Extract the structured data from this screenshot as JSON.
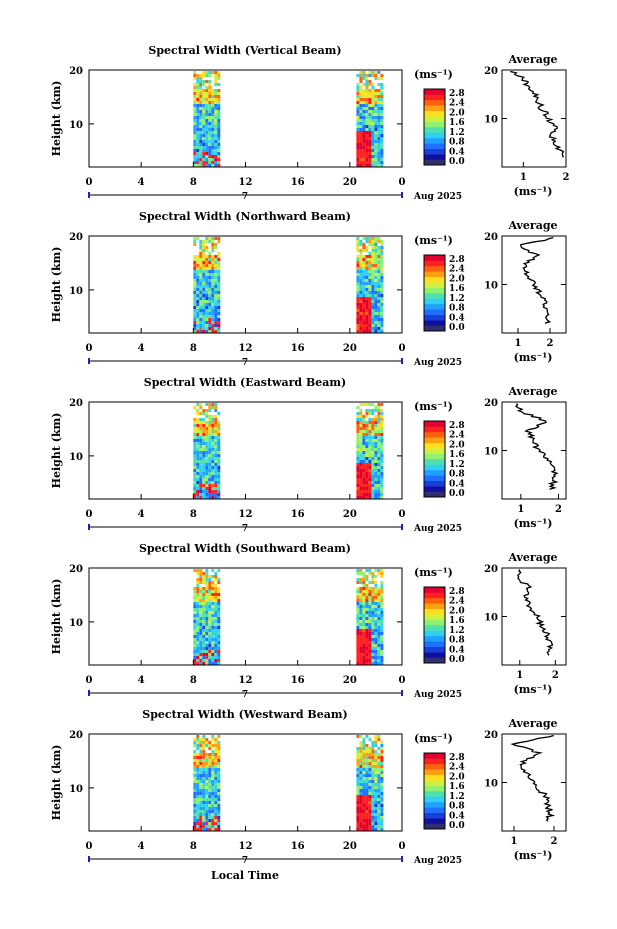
{
  "figure": {
    "xlabel": "Local Time",
    "date_label": "Aug 2025",
    "day_label": "7",
    "colorbar_unit": "(ms⁻¹)",
    "avg_title": "Average",
    "avg_xlabel": "(ms⁻¹)",
    "ylabel": "Height (km)",
    "colorbar_ticks": [
      "0.0",
      "0.4",
      "0.8",
      "1.2",
      "1.6",
      "2.0",
      "2.4",
      "2.8"
    ],
    "colorbar_colors": [
      "#303070",
      "#1010a0",
      "#1840d8",
      "#2070ff",
      "#20a0ff",
      "#30d0f0",
      "#50e0b0",
      "#90f070",
      "#d0f040",
      "#ffe020",
      "#ffa010",
      "#ff6010",
      "#ff2020",
      "#e00030"
    ],
    "time_ticks": [
      "0",
      "4",
      "8",
      "12",
      "16",
      "20",
      "0"
    ],
    "height_ticks": [
      "10",
      "20"
    ]
  },
  "chart_data": [
    {
      "type": "heatmap",
      "title": "Spectral Width (Vertical Beam)",
      "xlabel": "Local Time",
      "ylabel": "Height (km)",
      "xlim": [
        0,
        24
      ],
      "ylim": [
        2,
        20
      ],
      "data_blocks_local_time": [
        [
          8,
          10
        ],
        [
          20.5,
          22.5
        ]
      ],
      "avg_profile": {
        "title": "Average",
        "xlabel": "(ms⁻¹)",
        "xticks": [
          "1",
          "2"
        ],
        "xlim": [
          0.5,
          2.0
        ],
        "height": [
          2,
          4,
          6,
          8,
          10,
          12,
          14,
          16,
          18,
          20
        ],
        "values": [
          1.9,
          1.85,
          1.7,
          1.75,
          1.6,
          1.45,
          1.3,
          1.2,
          1.0,
          0.7
        ]
      }
    },
    {
      "type": "heatmap",
      "title": "Spectral Width (Northward Beam)",
      "xlabel": "Local Time",
      "ylabel": "Height (km)",
      "xlim": [
        0,
        24
      ],
      "ylim": [
        2,
        20
      ],
      "data_blocks_local_time": [
        [
          8,
          10
        ],
        [
          20.5,
          22.5
        ]
      ],
      "avg_profile": {
        "title": "Average",
        "xlabel": "(ms⁻¹)",
        "xticks": [
          "1",
          "2"
        ],
        "xlim": [
          0.5,
          2.5
        ],
        "height": [
          2,
          4,
          6,
          8,
          10,
          12,
          14,
          16,
          18,
          20
        ],
        "values": [
          1.9,
          1.9,
          1.85,
          1.7,
          1.5,
          1.3,
          1.2,
          1.6,
          1.0,
          2.4
        ]
      }
    },
    {
      "type": "heatmap",
      "title": "Spectral Width (Eastward Beam)",
      "xlabel": "Local Time",
      "ylabel": "Height (km)",
      "xlim": [
        0,
        24
      ],
      "ylim": [
        2,
        20
      ],
      "data_blocks_local_time": [
        [
          8,
          10
        ],
        [
          20.5,
          22.5
        ]
      ],
      "avg_profile": {
        "title": "Average",
        "xlabel": "(ms⁻¹)",
        "xticks": [
          "1",
          "2"
        ],
        "xlim": [
          0.5,
          2.2
        ],
        "height": [
          2,
          4,
          6,
          8,
          10,
          12,
          14,
          16,
          18,
          20
        ],
        "values": [
          1.8,
          1.9,
          1.85,
          1.7,
          1.5,
          1.3,
          1.2,
          1.7,
          1.0,
          0.8
        ]
      }
    },
    {
      "type": "heatmap",
      "title": "Spectral Width (Southward Beam)",
      "xlabel": "Local Time",
      "ylabel": "Height (km)",
      "xlim": [
        0,
        24
      ],
      "ylim": [
        2,
        20
      ],
      "data_blocks_local_time": [
        [
          8,
          10
        ],
        [
          20.5,
          22.5
        ]
      ],
      "avg_profile": {
        "title": "Average",
        "xlabel": "(ms⁻¹)",
        "xticks": [
          "1",
          "2"
        ],
        "xlim": [
          0.5,
          2.3
        ],
        "height": [
          2,
          4,
          6,
          8,
          10,
          12,
          14,
          16,
          18,
          20
        ],
        "values": [
          1.8,
          1.85,
          1.8,
          1.6,
          1.5,
          1.3,
          1.1,
          1.3,
          0.9,
          1.1
        ]
      }
    },
    {
      "type": "heatmap",
      "title": "Spectral Width (Westward Beam)",
      "xlabel": "Local Time",
      "ylabel": "Height (km)",
      "xlim": [
        0,
        24
      ],
      "ylim": [
        2,
        20
      ],
      "data_blocks_local_time": [
        [
          8,
          10
        ],
        [
          20.5,
          22.5
        ]
      ],
      "avg_profile": {
        "title": "Average",
        "xlabel": "(ms⁻¹)",
        "xticks": [
          "1",
          "2"
        ],
        "xlim": [
          0.7,
          2.3
        ],
        "height": [
          2,
          4,
          6,
          8,
          10,
          12,
          14,
          16,
          18,
          20
        ],
        "values": [
          1.9,
          1.9,
          1.85,
          1.7,
          1.5,
          1.3,
          1.2,
          1.6,
          1.0,
          2.2
        ]
      }
    }
  ]
}
